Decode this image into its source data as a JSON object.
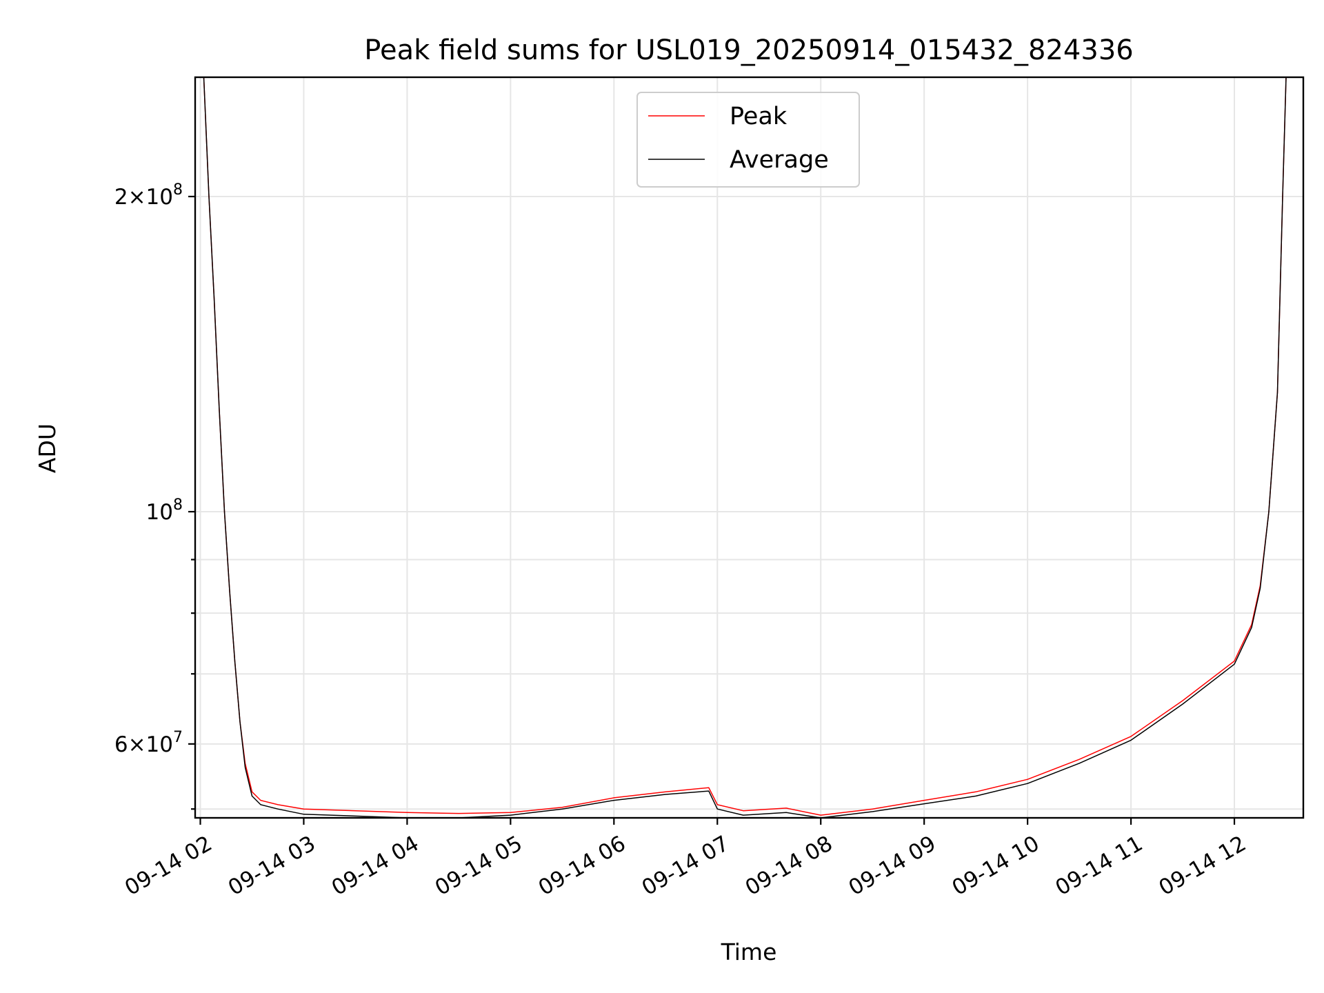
{
  "chart_data": {
    "type": "line",
    "title": "Peak field sums for USL019_20250914_015432_824336",
    "xlabel": "Time",
    "ylabel": "ADU",
    "y_scale": "log",
    "xlim": [
      "2025-09-14 01:57",
      "2025-09-14 12:40"
    ],
    "ylim": [
      51000000,
      260000000
    ],
    "grid": true,
    "legend_position": "top-center",
    "x_ticks": [
      {
        "t": "2025-09-14 02:00",
        "label": "09-14 02"
      },
      {
        "t": "2025-09-14 03:00",
        "label": "09-14 03"
      },
      {
        "t": "2025-09-14 04:00",
        "label": "09-14 04"
      },
      {
        "t": "2025-09-14 05:00",
        "label": "09-14 05"
      },
      {
        "t": "2025-09-14 06:00",
        "label": "09-14 06"
      },
      {
        "t": "2025-09-14 07:00",
        "label": "09-14 07"
      },
      {
        "t": "2025-09-14 08:00",
        "label": "09-14 08"
      },
      {
        "t": "2025-09-14 09:00",
        "label": "09-14 09"
      },
      {
        "t": "2025-09-14 10:00",
        "label": "09-14 10"
      },
      {
        "t": "2025-09-14 11:00",
        "label": "09-14 11"
      },
      {
        "t": "2025-09-14 12:00",
        "label": "09-14 12"
      }
    ],
    "y_major_ticks": [
      {
        "value": 60000000,
        "mant": "6",
        "exp": "7"
      },
      {
        "value": 100000000,
        "mant": "",
        "exp": "8"
      },
      {
        "value": 200000000,
        "mant": "2",
        "exp": "8"
      }
    ],
    "y_minor_ticks": [
      52000000,
      70000000,
      80000000,
      90000000
    ],
    "series": [
      {
        "name": "Peak",
        "color": "#ff0000",
        "x": [
          "2025-09-14 02:02",
          "2025-09-14 02:05",
          "2025-09-14 02:08",
          "2025-09-14 02:11",
          "2025-09-14 02:14",
          "2025-09-14 02:17",
          "2025-09-14 02:20",
          "2025-09-14 02:23",
          "2025-09-14 02:26",
          "2025-09-14 02:30",
          "2025-09-14 02:35",
          "2025-09-14 02:45",
          "2025-09-14 03:00",
          "2025-09-14 03:30",
          "2025-09-14 04:00",
          "2025-09-14 04:30",
          "2025-09-14 05:00",
          "2025-09-14 05:30",
          "2025-09-14 06:00",
          "2025-09-14 06:30",
          "2025-09-14 06:55",
          "2025-09-14 07:00",
          "2025-09-14 07:15",
          "2025-09-14 07:40",
          "2025-09-14 08:00",
          "2025-09-14 08:30",
          "2025-09-14 09:00",
          "2025-09-14 09:30",
          "2025-09-14 10:00",
          "2025-09-14 10:30",
          "2025-09-14 11:00",
          "2025-09-14 11:30",
          "2025-09-14 12:00",
          "2025-09-14 12:10",
          "2025-09-14 12:15",
          "2025-09-14 12:20",
          "2025-09-14 12:25",
          "2025-09-14 12:28",
          "2025-09-14 12:30"
        ],
        "y": [
          260000000,
          200000000,
          160000000,
          125000000,
          100000000,
          84000000,
          72000000,
          63000000,
          57500000,
          54000000,
          53000000,
          52500000,
          52000000,
          51800000,
          51600000,
          51500000,
          51600000,
          52200000,
          53300000,
          54000000,
          54500000,
          52500000,
          51800000,
          52100000,
          51300000,
          52000000,
          53000000,
          54000000,
          55500000,
          58000000,
          61000000,
          66000000,
          72000000,
          78000000,
          85000000,
          100000000,
          130000000,
          200000000,
          260000000
        ]
      },
      {
        "name": "Average",
        "color": "#000000",
        "x": [
          "2025-09-14 02:02",
          "2025-09-14 02:05",
          "2025-09-14 02:08",
          "2025-09-14 02:11",
          "2025-09-14 02:14",
          "2025-09-14 02:17",
          "2025-09-14 02:20",
          "2025-09-14 02:23",
          "2025-09-14 02:26",
          "2025-09-14 02:30",
          "2025-09-14 02:35",
          "2025-09-14 02:45",
          "2025-09-14 03:00",
          "2025-09-14 03:30",
          "2025-09-14 04:00",
          "2025-09-14 04:30",
          "2025-09-14 05:00",
          "2025-09-14 05:30",
          "2025-09-14 06:00",
          "2025-09-14 06:30",
          "2025-09-14 06:55",
          "2025-09-14 07:00",
          "2025-09-14 07:15",
          "2025-09-14 07:40",
          "2025-09-14 08:00",
          "2025-09-14 08:30",
          "2025-09-14 09:00",
          "2025-09-14 09:30",
          "2025-09-14 10:00",
          "2025-09-14 10:30",
          "2025-09-14 11:00",
          "2025-09-14 11:30",
          "2025-09-14 12:00",
          "2025-09-14 12:10",
          "2025-09-14 12:15",
          "2025-09-14 12:20",
          "2025-09-14 12:25",
          "2025-09-14 12:28",
          "2025-09-14 12:30"
        ],
        "y": [
          260000000,
          200000000,
          160000000,
          125000000,
          100000000,
          84000000,
          72000000,
          63000000,
          57000000,
          53500000,
          52500000,
          52000000,
          51400000,
          51200000,
          51000000,
          51000000,
          51300000,
          52000000,
          53000000,
          53700000,
          54100000,
          52000000,
          51300000,
          51600000,
          51000000,
          51700000,
          52600000,
          53500000,
          55000000,
          57500000,
          60500000,
          65500000,
          71500000,
          77500000,
          84500000,
          100000000,
          130000000,
          200000000,
          260000000
        ]
      }
    ]
  }
}
